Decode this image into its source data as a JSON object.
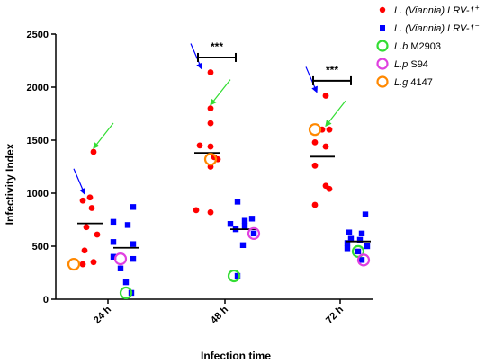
{
  "chart_data": {
    "type": "scatter",
    "xlabel": "Infection time",
    "ylabel": "Infectivity Index",
    "categories": [
      "24 h",
      "48 h",
      "72 h"
    ],
    "ylim": [
      0,
      2500
    ],
    "yticks": [
      0,
      500,
      1000,
      1500,
      2000,
      2500
    ],
    "series": [
      {
        "name": "L. (Viannia) LRV-1+",
        "name_base": "L. (Viannia) LRV-1",
        "name_sup": "+",
        "marker": "circle",
        "color": "#ff0000",
        "points": [
          {
            "group": 0,
            "values": [
              1390,
              960,
              930,
              860,
              680,
              610,
              460,
              350,
              330
            ]
          },
          {
            "group": 1,
            "values": [
              2140,
              1800,
              1660,
              1450,
              1440,
              1340,
              1320,
              1250,
              840,
              820
            ]
          },
          {
            "group": 2,
            "values": [
              1920,
              1600,
              1600,
              1480,
              1440,
              1260,
              1070,
              1040,
              890
            ]
          }
        ],
        "means": [
          715,
          1380,
          1345
        ]
      },
      {
        "name": "L. (Viannia) LRV-1−",
        "name_base": "L. (Viannia) LRV-1",
        "name_sup": "−",
        "marker": "square",
        "color": "#0000ff",
        "points": [
          {
            "group": 0,
            "values": [
              870,
              730,
              700,
              540,
              520,
              400,
              380,
              290,
              160,
              60
            ]
          },
          {
            "group": 1,
            "values": [
              920,
              760,
              740,
              710,
              690,
              660,
              620,
              510,
              220
            ]
          },
          {
            "group": 2,
            "values": [
              800,
              630,
              620,
              570,
              560,
              530,
              500,
              480,
              450,
              370
            ]
          }
        ],
        "means": [
          485,
          660,
          545
        ]
      }
    ],
    "highlighted_strains": [
      {
        "name": "L.b M2903",
        "name_italic": "L.b",
        "name_rest": " M2903",
        "color": "#33dd33",
        "points": [
          {
            "group": 0,
            "value": 60,
            "series": 1
          },
          {
            "group": 1,
            "value": 220,
            "series": 1
          },
          {
            "group": 2,
            "value": 450,
            "series": 1
          }
        ]
      },
      {
        "name": "L.p S94",
        "name_italic": "L.p",
        "name_rest": " S94",
        "color": "#e040e0",
        "points": [
          {
            "group": 0,
            "value": 380,
            "series": 1
          },
          {
            "group": 1,
            "value": 620,
            "series": 1
          },
          {
            "group": 2,
            "value": 370,
            "series": 1
          }
        ]
      },
      {
        "name": "L.g 4147",
        "name_italic": "L.g",
        "name_rest": " 4147",
        "color": "#ff8800",
        "points": [
          {
            "group": 0,
            "value": 330,
            "series": 0
          },
          {
            "group": 1,
            "value": 1320,
            "series": 0
          },
          {
            "group": 2,
            "value": 1600,
            "series": 0
          }
        ]
      }
    ],
    "significance": [
      {
        "from_group": 1,
        "label": "***",
        "y": 2280
      },
      {
        "from_group": 2,
        "label": "***",
        "y": 2060
      }
    ],
    "arrows": [
      {
        "group": 0,
        "series": 0,
        "color": "#0000ff",
        "target": 960
      },
      {
        "group": 0,
        "series": 0,
        "color": "#33dd33",
        "target": 1390
      },
      {
        "group": 1,
        "series": 0,
        "color": "#0000ff",
        "target": 2140
      },
      {
        "group": 1,
        "series": 0,
        "color": "#33dd33",
        "target": 1800
      },
      {
        "group": 2,
        "series": 0,
        "color": "#0000ff",
        "target": 1920
      },
      {
        "group": 2,
        "series": 0,
        "color": "#33dd33",
        "target": 1600
      }
    ],
    "legend_position": "top-right"
  }
}
